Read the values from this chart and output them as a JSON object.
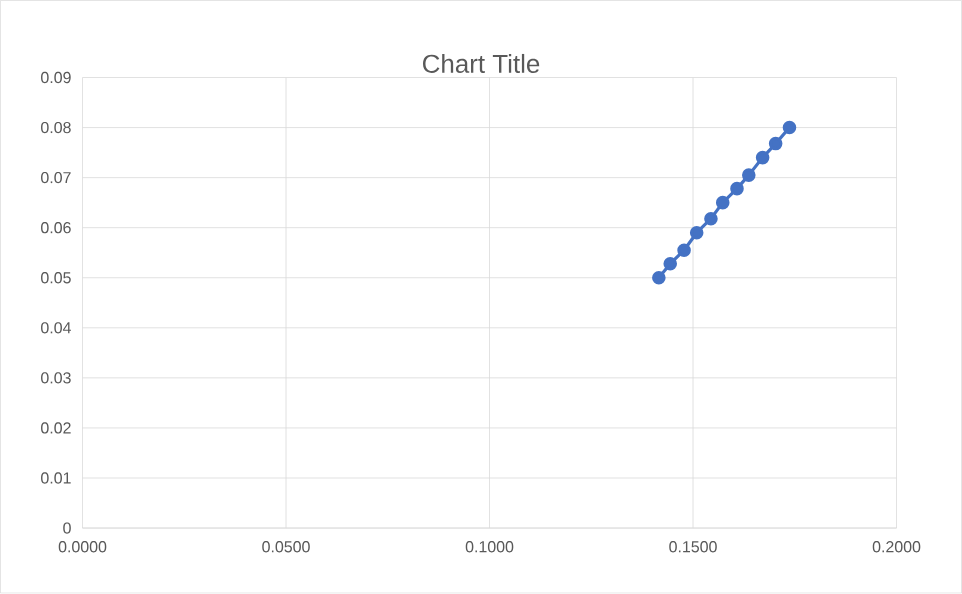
{
  "chart_data": {
    "type": "line",
    "title": "Chart Title",
    "x": [
      0.1416,
      0.1444,
      0.1478,
      0.1509,
      0.1544,
      0.1573,
      0.1608,
      0.1637,
      0.1671,
      0.1703,
      0.1737
    ],
    "series": [
      {
        "color": "#4472c4",
        "values": [
          0.05,
          0.0528,
          0.0555,
          0.059,
          0.0618,
          0.065,
          0.0678,
          0.0705,
          0.074,
          0.0768,
          0.08
        ]
      }
    ],
    "xlim": [
      0,
      0.2
    ],
    "ylim": [
      0,
      0.09
    ],
    "xticks": [
      {
        "value": 0,
        "label": "0.0000"
      },
      {
        "value": 0.05,
        "label": "0.0500"
      },
      {
        "value": 0.1,
        "label": "0.1000"
      },
      {
        "value": 0.15,
        "label": "0.1500"
      },
      {
        "value": 0.2,
        "label": "0.2000"
      }
    ],
    "yticks": [
      0,
      0.01,
      0.02,
      0.03,
      0.04,
      0.05,
      0.06,
      0.07,
      0.08,
      0.09
    ],
    "grid": true,
    "marker": "circle",
    "line_style": "solid"
  }
}
